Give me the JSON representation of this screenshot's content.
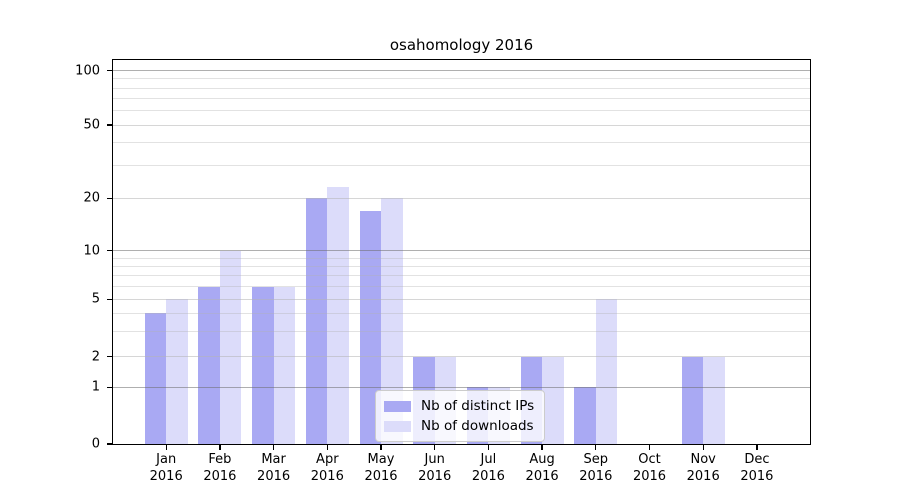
{
  "chart_data": {
    "type": "bar",
    "title": "osahomology 2016",
    "categories": [
      "Jan",
      "Feb",
      "Mar",
      "Apr",
      "May",
      "Jun",
      "Jul",
      "Aug",
      "Sep",
      "Oct",
      "Nov",
      "Dec"
    ],
    "category_year": "2016",
    "series": [
      {
        "name": "Nb of distinct IPs",
        "color": "#a9a9f3",
        "values": [
          4,
          6,
          6,
          20,
          17,
          2,
          1,
          2,
          1,
          0,
          2,
          0
        ]
      },
      {
        "name": "Nb of downloads",
        "color": "#dcdcfa",
        "values": [
          5,
          10,
          6,
          23,
          20,
          2,
          1,
          2,
          5,
          0,
          2,
          0
        ]
      }
    ],
    "ylim": [
      0,
      100
    ],
    "yscale": "log-like",
    "yticks": [
      0,
      1,
      2,
      5,
      10,
      20,
      50,
      100
    ],
    "yticks_decade_emphasis": [
      1,
      10,
      100
    ],
    "yminor_gridlines": [
      3,
      4,
      6,
      7,
      8,
      9,
      30,
      40,
      60,
      70,
      80,
      90
    ],
    "xlabel": "",
    "ylabel": "",
    "grid": "horizontal, drawn above bars",
    "legend_position": "lower center"
  }
}
